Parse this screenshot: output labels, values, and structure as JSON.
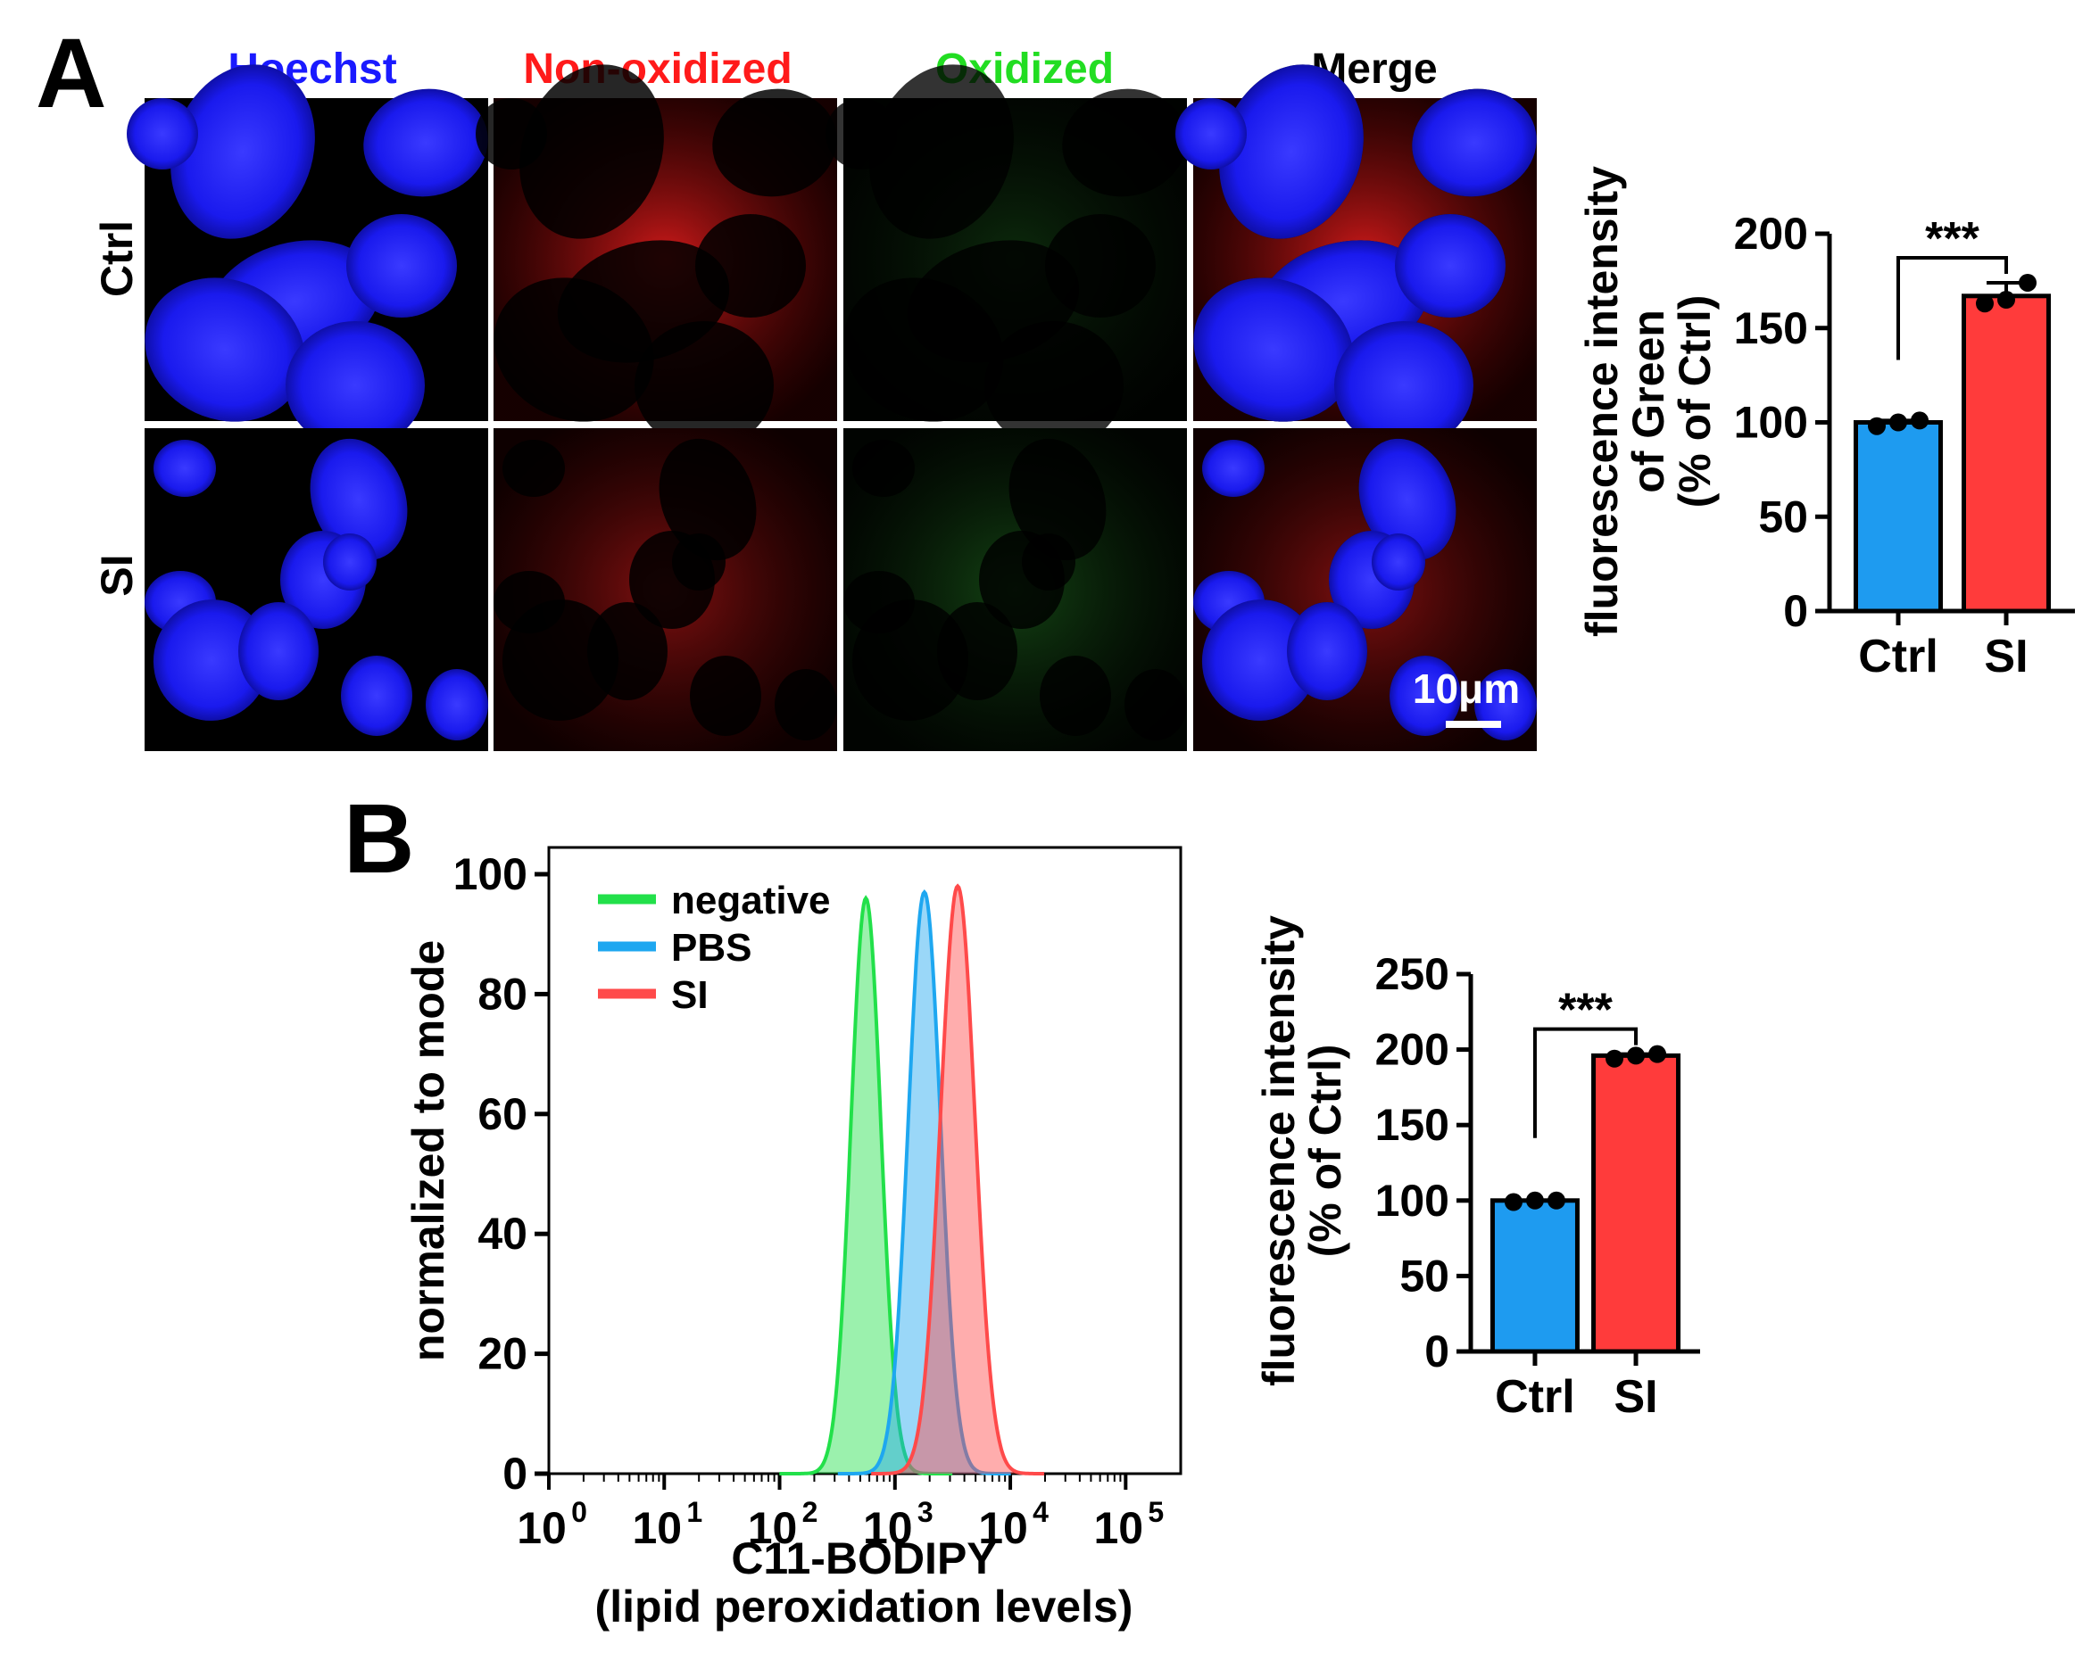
{
  "panel_a": {
    "letter": "A",
    "channels": [
      {
        "label": "Hoechst",
        "color": "#1a1aff"
      },
      {
        "label": "Non-oxidized",
        "color": "#ff1a1a"
      },
      {
        "label": "Oxidized",
        "color": "#22dd22"
      },
      {
        "label": "Merge",
        "color": "#000000"
      }
    ],
    "rows": [
      "Ctrl",
      "SI"
    ],
    "scale_bar": "10μm",
    "ylabel_lines": [
      "fluorescence intensity",
      "of Green",
      "(% of Ctrl)"
    ]
  },
  "panel_b": {
    "letter": "B",
    "xlabel_lines": [
      "C11-BODIPY",
      "(lipid peroxidation levels)"
    ],
    "ylabel": "normalized to mode",
    "bar_ylabel_lines": [
      "fluorescence intensity",
      "(% of Ctrl)"
    ]
  },
  "colors": {
    "ctrl_bar": "#1e9bf0",
    "si_bar": "#ff3b3b",
    "negative": "#22e04a",
    "pbs": "#1ea7f0",
    "si_hist": "#ff4a4a"
  },
  "chart_data": [
    {
      "type": "bar",
      "categories": [
        "Ctrl",
        "SI"
      ],
      "values": [
        100,
        167
      ],
      "points": [
        [
          98,
          100,
          101
        ],
        [
          163,
          165,
          174
        ]
      ],
      "ylim": [
        0,
        200
      ],
      "yticks": [
        0,
        50,
        100,
        150,
        200
      ],
      "significance": "***"
    },
    {
      "type": "area",
      "xscale": "log",
      "xlim": [
        1,
        300000
      ],
      "ylim": [
        0,
        100
      ],
      "yticks": [
        0,
        20,
        40,
        60,
        80,
        100
      ],
      "xticks": [
        {
          "base": "10",
          "exp": "0"
        },
        {
          "base": "10",
          "exp": "1"
        },
        {
          "base": "10",
          "exp": "2"
        },
        {
          "base": "10",
          "exp": "3"
        },
        {
          "base": "10",
          "exp": "4"
        },
        {
          "base": "10",
          "exp": "5"
        }
      ],
      "legend": "top-left",
      "series": [
        {
          "name": "negative",
          "peak_x": 560,
          "peak_y": 96
        },
        {
          "name": "PBS",
          "peak_x": 1800,
          "peak_y": 97
        },
        {
          "name": "SI",
          "peak_x": 3500,
          "peak_y": 98
        }
      ]
    },
    {
      "type": "bar",
      "categories": [
        "Ctrl",
        "SI"
      ],
      "values": [
        100,
        196
      ],
      "points": [
        [
          99,
          100,
          100
        ],
        [
          194,
          196,
          197
        ]
      ],
      "ylim": [
        0,
        250
      ],
      "yticks": [
        0,
        50,
        100,
        150,
        200,
        250
      ],
      "significance": "***"
    }
  ]
}
